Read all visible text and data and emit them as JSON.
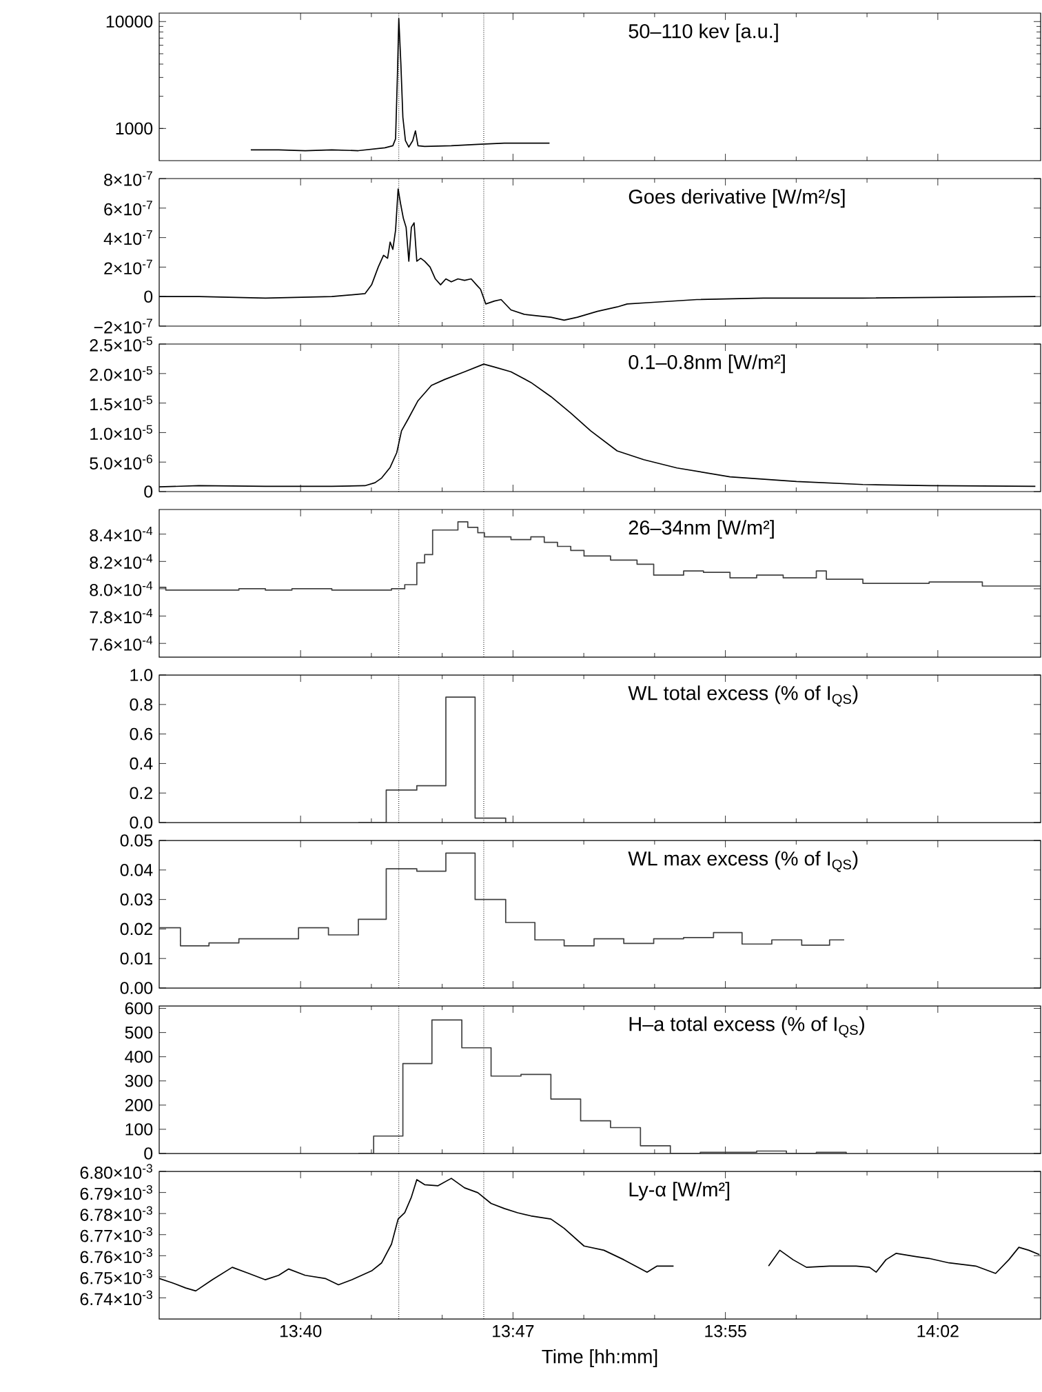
{
  "chart_data": [
    {
      "type": "line",
      "title": "50–110 kev [a.u.]",
      "log": true,
      "tick_labels": "y",
      "xlim": [
        13.5793,
        14.098
      ],
      "ylim": [
        500,
        12000
      ],
      "yticks": [
        1000,
        10000
      ],
      "xticks": [
        {
          "value": 13.6625,
          "label": null
        },
        {
          "value": 13.7875,
          "label": null
        },
        {
          "value": 13.9125,
          "label": null
        },
        {
          "value": 14.0375,
          "label": null
        }
      ],
      "ref_lines": [
        {
          "axis": "x",
          "value": 13.7203,
          "line_style": "dotted"
        },
        {
          "axis": "x",
          "value": 13.7703,
          "line_style": "dotted"
        }
      ],
      "series": [
        {
          "color": "#000000",
          "x": [
            13.6332,
            13.6496,
            13.6652,
            13.6809,
            13.6965,
            13.7121,
            13.7168,
            13.7184,
            13.7195,
            13.7203,
            13.7215,
            13.7227,
            13.7242,
            13.7262,
            13.7285,
            13.7301,
            13.7316,
            13.7355,
            13.7512,
            13.7668,
            13.7824,
            13.798,
            13.809
          ],
          "values": [
            630,
            630,
            620,
            630,
            620,
            660,
            690,
            800,
            3200,
            10700,
            4100,
            1270,
            770,
            670,
            770,
            950,
            690,
            680,
            690,
            710,
            730,
            730,
            730
          ]
        }
      ]
    },
    {
      "type": "line",
      "title": "Goes derivative [W/m²/s]",
      "tick_labels": "y",
      "xlim": [
        13.5793,
        14.098
      ],
      "ylim": [
        -2e-07,
        8e-07
      ],
      "yticks": [
        {
          "value": 8e-07,
          "label": "8×10$^{-7}$"
        },
        {
          "value": 6e-07,
          "label": "6×10$^{-7}$"
        },
        {
          "value": 4e-07,
          "label": "4×10$^{-7}$"
        },
        {
          "value": 2e-07,
          "label": "2×10$^{-7}$"
        },
        0,
        {
          "value": -2e-07,
          "label": "−2×10$^{-7}$"
        }
      ],
      "xticks": [
        {
          "value": 13.6625,
          "label": null
        },
        {
          "value": 13.7875,
          "label": null
        },
        {
          "value": 13.9125,
          "label": null
        },
        {
          "value": 14.0375,
          "label": null
        }
      ],
      "ref_lines": [
        {
          "axis": "x",
          "value": 13.7203,
          "line_style": "dotted"
        },
        {
          "axis": "x",
          "value": 13.7703,
          "line_style": "dotted"
        }
      ],
      "series": [
        {
          "color": "#000000",
          "x": [
            13.5793,
            13.6027,
            13.6418,
            13.6809,
            13.7004,
            13.7043,
            13.7082,
            13.7113,
            13.7137,
            13.7152,
            13.7168,
            13.7184,
            13.7199,
            13.7215,
            13.723,
            13.7246,
            13.7262,
            13.7277,
            13.7293,
            13.7309,
            13.7332,
            13.7355,
            13.7387,
            13.7418,
            13.7449,
            13.748,
            13.7512,
            13.7551,
            13.759,
            13.7629,
            13.766,
            13.7684,
            13.7715,
            13.7766,
            13.7805,
            13.7863,
            13.7941,
            13.802,
            13.8098,
            13.8176,
            13.8254,
            13.8371,
            13.8488,
            13.8547,
            13.8684,
            13.8957,
            13.9348,
            13.9934,
            14.0949
          ],
          "values": [
            0,
            0,
            -1e-08,
            0,
            2e-08,
            8e-08,
            2e-07,
            2.8e-07,
            2.6e-07,
            3.7e-07,
            3.2e-07,
            4.5e-07,
            7.3e-07,
            6.2e-07,
            5.3e-07,
            4.7e-07,
            2.4e-07,
            4.7e-07,
            5e-07,
            2.4e-07,
            2.6e-07,
            2.4e-07,
            2e-07,
            1.2e-07,
            8e-08,
            1.2e-07,
            1e-07,
            1.2e-07,
            1.1e-07,
            1.2e-07,
            8e-08,
            5e-08,
            -5e-08,
            -3e-08,
            -2e-08,
            -9e-08,
            -1.2e-07,
            -1.3e-07,
            -1.4e-07,
            -1.6e-07,
            -1.4e-07,
            -1e-07,
            -7e-08,
            -5e-08,
            -4e-08,
            -2e-08,
            -1e-08,
            -1e-08,
            0
          ]
        }
      ]
    },
    {
      "type": "line",
      "title": "0.1–0.8nm [W/m²]",
      "tick_labels": "y",
      "xlim": [
        13.5793,
        14.098
      ],
      "ylim": [
        0,
        2.5e-05
      ],
      "yticks": [
        {
          "value": 2.5e-05,
          "label": "2.5×10$^{-5}$"
        },
        {
          "value": 2e-05,
          "label": "2.0×10$^{-5}$"
        },
        {
          "value": 1.5e-05,
          "label": "1.5×10$^{-5}$"
        },
        {
          "value": 1e-05,
          "label": "1.0×10$^{-5}$"
        },
        {
          "value": 5e-06,
          "label": "5.0×10$^{-6}$"
        },
        0
      ],
      "xticks": [
        {
          "value": 13.6625,
          "label": null
        },
        {
          "value": 13.7875,
          "label": null
        },
        {
          "value": 13.9125,
          "label": null
        },
        {
          "value": 14.0375,
          "label": null
        }
      ],
      "ref_lines": [
        {
          "axis": "x",
          "value": 13.7203,
          "line_style": "dotted"
        },
        {
          "axis": "x",
          "value": 13.7703,
          "line_style": "dotted"
        }
      ],
      "series": [
        {
          "color": "#000000",
          "x": [
            13.5793,
            13.6027,
            13.6418,
            13.6809,
            13.7004,
            13.7063,
            13.7102,
            13.7152,
            13.7191,
            13.7219,
            13.7258,
            13.7316,
            13.7395,
            13.7473,
            13.759,
            13.7703,
            13.7766,
            13.7863,
            13.798,
            13.8098,
            13.8215,
            13.8332,
            13.8488,
            13.8645,
            13.884,
            13.9152,
            13.9543,
            13.9934,
            14.0324,
            14.0949
          ],
          "values": [
            8e-07,
            1e-06,
            9e-07,
            9e-07,
            1e-06,
            1.5e-06,
            2.3e-06,
            4.1e-06,
            6.6e-06,
            1.03e-05,
            1.23e-05,
            1.54e-05,
            1.8e-05,
            1.9e-05,
            2.03e-05,
            2.16e-05,
            2.11e-05,
            2.03e-05,
            1.85e-05,
            1.61e-05,
            1.33e-05,
            1.03e-05,
            6.9e-06,
            5.4e-06,
            4e-06,
            2.5e-06,
            1.7e-06,
            1.2e-06,
            1e-06,
            9e-07
          ]
        }
      ]
    },
    {
      "type": "step",
      "title": "26–34nm [W/m²]",
      "tick_labels": "y",
      "xlim": [
        13.5793,
        14.098
      ],
      "ylim": [
        0.00075,
        0.000858
      ],
      "yticks": [
        {
          "value": 0.00084,
          "label": "8.4×10$^{-4}$"
        },
        {
          "value": 0.00082,
          "label": "8.2×10$^{-4}$"
        },
        {
          "value": 0.0008,
          "label": "8.0×10$^{-4}$"
        },
        {
          "value": 0.00078,
          "label": "7.8×10$^{-4}$"
        },
        {
          "value": 0.00076,
          "label": "7.6×10$^{-4}$"
        }
      ],
      "xticks": [
        {
          "value": 13.6625,
          "label": null
        },
        {
          "value": 13.7875,
          "label": null
        },
        {
          "value": 13.9125,
          "label": null
        },
        {
          "value": 14.0375,
          "label": null
        }
      ],
      "ref_lines": [
        {
          "axis": "x",
          "value": 13.7203,
          "line_style": "dotted"
        },
        {
          "axis": "x",
          "value": 13.7703,
          "line_style": "dotted"
        }
      ],
      "series": [
        {
          "color": "#404040",
          "x": [
            13.5793,
            13.5832,
            13.6027,
            13.6262,
            13.6418,
            13.6574,
            13.6809,
            13.7004,
            13.716,
            13.7238,
            13.7309,
            13.7355,
            13.7402,
            13.7551,
            13.7609,
            13.7668,
            13.7707,
            13.7863,
            13.798,
            13.8059,
            13.8137,
            13.8215,
            13.8293,
            13.8449,
            13.8605,
            13.8703,
            13.8879,
            13.8996,
            13.9152,
            13.9309,
            13.9465,
            13.966,
            13.9719,
            13.9934,
            14.0324,
            14.0637,
            14.098
          ],
          "values": [
            0.000801,
            0.000799,
            0.000799,
            0.0008,
            0.000799,
            0.0008,
            0.000799,
            0.000799,
            0.0008,
            0.000803,
            0.000819,
            0.000825,
            0.000843,
            0.000849,
            0.000845,
            0.000841,
            0.000838,
            0.000836,
            0.000838,
            0.000834,
            0.000831,
            0.000828,
            0.000824,
            0.000821,
            0.000818,
            0.00081,
            0.000813,
            0.000812,
            0.000808,
            0.00081,
            0.000808,
            0.000813,
            0.000807,
            0.000804,
            0.000805,
            0.000802,
            0.000802
          ]
        }
      ]
    },
    {
      "type": "step",
      "title": "WL total excess (% of I$_{QS}$)",
      "tick_labels": "y",
      "xlim": [
        13.5793,
        14.098
      ],
      "ylim": [
        0,
        1
      ],
      "yticks": [
        {
          "value": 1,
          "label": "1.0"
        },
        0.8,
        0.6,
        0.4,
        0.2,
        {
          "value": 0,
          "label": "0.0"
        }
      ],
      "xticks": [
        {
          "value": 13.6625,
          "label": null
        },
        {
          "value": 13.7875,
          "label": null
        },
        {
          "value": 13.9125,
          "label": null
        },
        {
          "value": 14.0375,
          "label": null
        }
      ],
      "ref_lines": [
        {
          "axis": "x",
          "value": 13.7203,
          "line_style": "dotted"
        },
        {
          "axis": "x",
          "value": 13.7703,
          "line_style": "dotted"
        }
      ],
      "series": [
        {
          "color": "#404040",
          "x": [
            13.6965,
            13.7129,
            13.7309,
            13.748,
            13.7652,
            13.7832
          ],
          "values": [
            0,
            0.22,
            0.25,
            0.85,
            0.03,
            0
          ]
        }
      ]
    },
    {
      "type": "step",
      "title": "WL max excess (% of I$_{QS}$)",
      "tick_labels": "y",
      "xlim": [
        13.5793,
        14.098
      ],
      "ylim": [
        0,
        0.05
      ],
      "yticks": [
        {
          "value": 0.05,
          "label": "0.05"
        },
        {
          "value": 0.04,
          "label": "0.04"
        },
        {
          "value": 0.03,
          "label": "0.03"
        },
        {
          "value": 0.02,
          "label": "0.02"
        },
        {
          "value": 0.01,
          "label": "0.01"
        },
        {
          "value": 0,
          "label": "0.00"
        }
      ],
      "xticks": [
        {
          "value": 13.6625,
          "label": null
        },
        {
          "value": 13.7875,
          "label": null
        },
        {
          "value": 13.9125,
          "label": null
        },
        {
          "value": 14.0375,
          "label": null
        }
      ],
      "ref_lines": [
        {
          "axis": "x",
          "value": 13.7203,
          "line_style": "dotted"
        },
        {
          "axis": "x",
          "value": 13.7703,
          "line_style": "dotted"
        }
      ],
      "series": [
        {
          "color": "#404040",
          "x": [
            13.5793,
            13.5918,
            13.6086,
            13.6262,
            13.6613,
            13.6789,
            13.6965,
            13.7129,
            13.7309,
            13.748,
            13.7652,
            13.7832,
            13.8004,
            13.8176,
            13.8352,
            13.8527,
            13.8703,
            13.8879,
            13.9055,
            13.9223,
            13.9398,
            13.9574,
            13.9738,
            13.9824
          ],
          "values": [
            0.0204,
            0.0143,
            0.0153,
            0.0167,
            0.0204,
            0.018,
            0.0233,
            0.0404,
            0.0396,
            0.0457,
            0.03,
            0.0222,
            0.0163,
            0.0143,
            0.0167,
            0.0151,
            0.0167,
            0.0171,
            0.0188,
            0.0149,
            0.0163,
            0.0145,
            0.0163,
            0.0163
          ]
        }
      ]
    },
    {
      "type": "step",
      "title": "H–a total excess (% of I$_{QS}$)",
      "tick_labels": "y",
      "xlim": [
        13.5793,
        14.098
      ],
      "ylim": [
        0,
        610
      ],
      "yticks": [
        0,
        100,
        200,
        300,
        400,
        500,
        600
      ],
      "xticks": [
        {
          "value": 13.6625,
          "label": null
        },
        {
          "value": 13.7875,
          "label": null
        },
        {
          "value": 13.9125,
          "label": null
        },
        {
          "value": 14.0375,
          "label": null
        }
      ],
      "ref_lines": [
        {
          "axis": "x",
          "value": 13.7203,
          "line_style": "dotted"
        },
        {
          "axis": "x",
          "value": 13.7703,
          "line_style": "dotted"
        }
      ],
      "series": [
        {
          "color": "#404040",
          "x": [
            13.6965,
            13.7055,
            13.7227,
            13.7398,
            13.7574,
            13.7746,
            13.7922,
            13.8098,
            13.8273,
            13.8449,
            13.8625,
            13.8801,
            13.8977,
            13.9309,
            13.9484,
            13.966,
            13.9836
          ],
          "values": [
            0,
            72,
            372,
            552,
            437,
            320,
            327,
            225,
            135,
            107,
            32,
            0,
            5,
            10,
            0,
            5,
            0
          ]
        }
      ]
    },
    {
      "type": "line",
      "title": "Ly-α [W/m²]",
      "xlabel": "Time [hh:mm]",
      "xlim": [
        13.5793,
        14.098
      ],
      "ylim": [
        0.00673,
        0.0068
      ],
      "yticks": [
        {
          "value": 0.0068,
          "label": "6.80×10$^{-3}$"
        },
        {
          "value": 0.00679,
          "label": "6.79×10$^{-3}$"
        },
        {
          "value": 0.00678,
          "label": "6.78×10$^{-3}$"
        },
        {
          "value": 0.00677,
          "label": "6.77×10$^{-3}$"
        },
        {
          "value": 0.00676,
          "label": "6.76×10$^{-3}$"
        },
        {
          "value": 0.00675,
          "label": "6.75×10$^{-3}$"
        },
        {
          "value": 0.00674,
          "label": "6.74×10$^{-3}$"
        }
      ],
      "xticks": [
        {
          "value": 13.6625,
          "label": "13:40"
        },
        {
          "value": 13.7875,
          "label": "13:47"
        },
        {
          "value": 13.9125,
          "label": "13:55"
        },
        {
          "value": 14.0375,
          "label": "14:02"
        }
      ],
      "ref_lines": [
        {
          "axis": "x",
          "value": 13.7203,
          "line_style": "dotted"
        },
        {
          "axis": "x",
          "value": 13.7703,
          "line_style": "dotted"
        }
      ],
      "series": [
        {
          "color": "#000000",
          "x": [
            13.5793,
            13.5871,
            13.5949,
            13.6008,
            13.6105,
            13.6223,
            13.632,
            13.6418,
            13.6496,
            13.6555,
            13.6652,
            13.677,
            13.6848,
            13.6926,
            13.7043,
            13.7102,
            13.716,
            13.7199,
            13.7238,
            13.7277,
            13.7309,
            13.7355,
            13.7434,
            13.7512,
            13.759,
            13.7668,
            13.7746,
            13.7824,
            13.7902,
            13.798,
            13.8098,
            13.8176,
            13.8293,
            13.841,
            13.8527,
            13.8664,
            13.8723,
            13.882,
            13.9074,
            13.9379,
            13.9445,
            13.9523,
            13.9602,
            13.9738,
            13.9895,
            13.9973,
            14.0012,
            14.007,
            14.0129,
            14.0246,
            14.0324,
            14.0441,
            14.0598,
            14.0715,
            14.0793,
            14.0852,
            14.091,
            14.0973
          ],
          "values": [
            0.0067492,
            0.0067471,
            0.0067447,
            0.0067433,
            0.0067486,
            0.0067545,
            0.0067516,
            0.0067486,
            0.0067507,
            0.0067537,
            0.0067507,
            0.0067492,
            0.0067462,
            0.0067486,
            0.0067528,
            0.0067566,
            0.0067655,
            0.0067774,
            0.0067804,
            0.0067878,
            0.0067961,
            0.0067937,
            0.0067932,
            0.0067967,
            0.0067922,
            0.0067899,
            0.0067848,
            0.0067824,
            0.0067804,
            0.0067789,
            0.0067774,
            0.006773,
            0.0067646,
            0.0067626,
            0.0067581,
            0.0067522,
            0.0067551,
            0.0067551,
            null,
            0.0067551,
            0.0067626,
            0.0067581,
            0.0067545,
            0.0067551,
            0.0067551,
            0.0067545,
            0.0067522,
            0.0067581,
            0.0067611,
            0.0067596,
            0.0067587,
            0.0067566,
            0.0067551,
            0.0067516,
            0.0067581,
            0.006764,
            0.0067626,
            0.0067605
          ]
        }
      ]
    }
  ]
}
